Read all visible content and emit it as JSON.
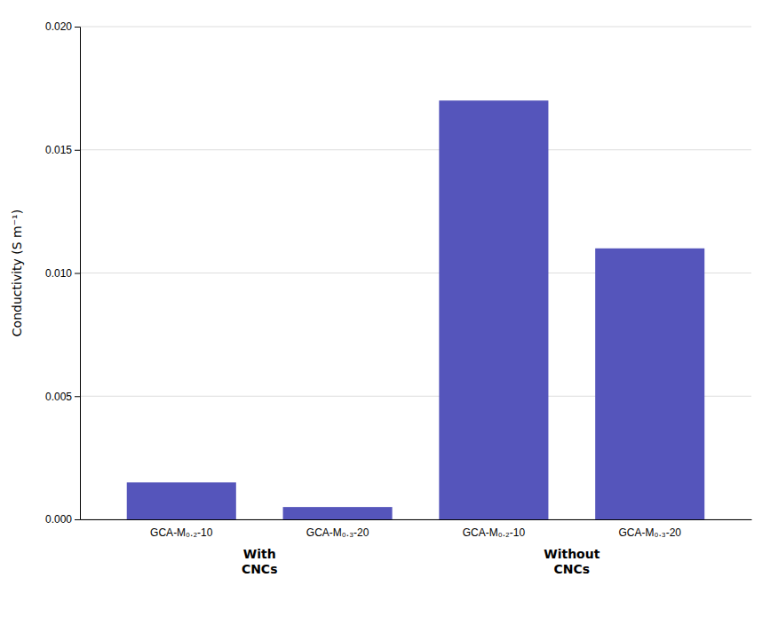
{
  "chart_data": {
    "type": "bar",
    "categories": [
      "GCA-M₀.₂-10",
      "GCA-M₀.₃-20",
      "GCA-M₀.₂-10",
      "GCA-M₀.₃-20"
    ],
    "values": [
      0.0015,
      0.0005,
      0.017,
      0.011
    ],
    "color": "#5555bb",
    "y_label": "Conductivity (S m⁻¹)",
    "ylim": [
      0,
      0.02
    ],
    "yticks": [
      {
        "value": 0.0,
        "label": "0.000"
      },
      {
        "value": 0.005,
        "label": "0.005"
      },
      {
        "value": 0.01,
        "label": "0.010"
      },
      {
        "value": 0.015,
        "label": "0.015"
      },
      {
        "value": 0.02,
        "label": "0.020"
      }
    ],
    "grid": true,
    "annotations": [
      {
        "text": "With\nCNCs"
      },
      {
        "text": "Without\nCNCs"
      }
    ]
  }
}
